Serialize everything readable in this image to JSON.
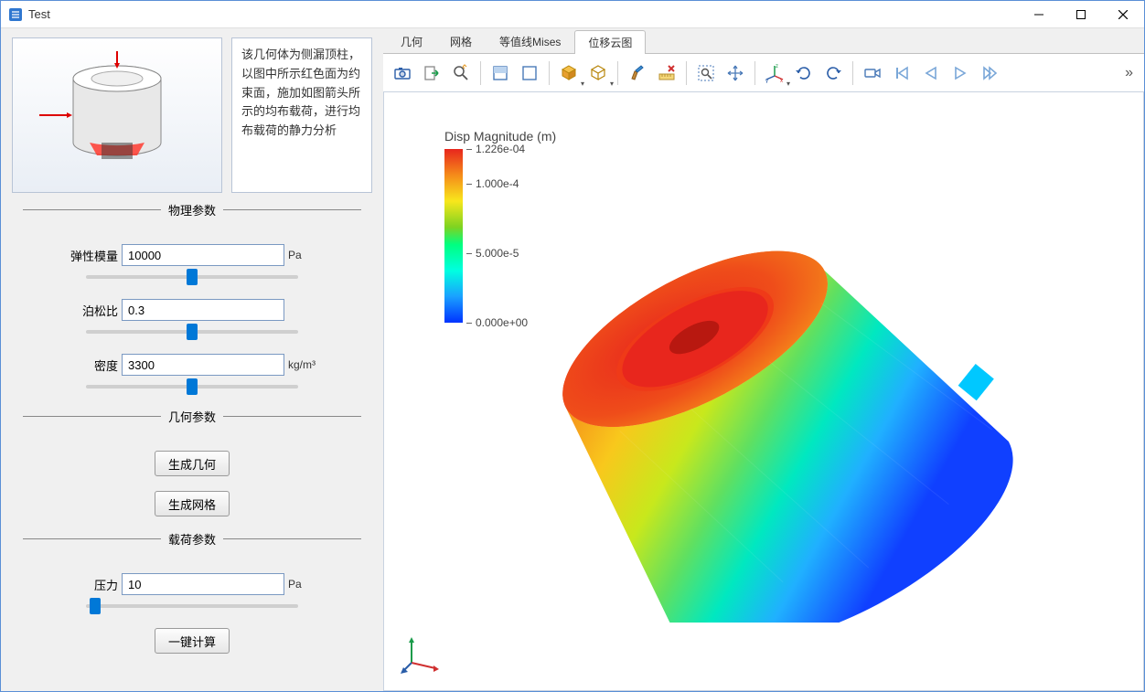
{
  "window": {
    "title": "Test"
  },
  "description": "该几何体为侧漏顶柱，以图中所示红色面为约束面，施加如图箭头所示的均布载荷，进行均布载荷的静力分析",
  "sections": {
    "physical": "物理参数",
    "geometry": "几何参数",
    "load": "载荷参数"
  },
  "params": {
    "elastic": {
      "label": "弹性模量",
      "value": "10000",
      "unit": "Pa",
      "slider": 50
    },
    "poisson": {
      "label": "泊松比",
      "value": "0.3",
      "unit": "",
      "slider": 50
    },
    "density": {
      "label": "密度",
      "value": "3300",
      "unit": "kg/m³",
      "slider": 50
    },
    "pressure": {
      "label": "压力",
      "value": "10",
      "unit": "Pa",
      "slider": 2
    }
  },
  "buttons": {
    "gen_geom": "生成几何",
    "gen_mesh": "生成网格",
    "compute": "一键计算"
  },
  "tabs": [
    {
      "id": "geom",
      "label": "几何",
      "active": false
    },
    {
      "id": "mesh",
      "label": "网格",
      "active": false
    },
    {
      "id": "mises",
      "label": "等值线Mises",
      "active": false
    },
    {
      "id": "disp",
      "label": "位移云图",
      "active": true
    }
  ],
  "legend": {
    "title": "Disp Magnitude (m)",
    "gradient_colors": [
      "#e8261d",
      "#f58b1a",
      "#f8e71c",
      "#7ed321",
      "#00ff80",
      "#00ffe0",
      "#1aa0ff",
      "#0033ff"
    ],
    "ticks": [
      {
        "label": "1.226e-04",
        "pos_pct": 0
      },
      {
        "label": "1.000e-4",
        "pos_pct": 20
      },
      {
        "label": "5.000e-5",
        "pos_pct": 60
      },
      {
        "label": "0.000e+00",
        "pos_pct": 100
      }
    ]
  },
  "toolbar_icons": [
    "camera",
    "export-arrow",
    "magnifier",
    "select-rect-a",
    "select-rect-b",
    "cube-alt",
    "cube-dd",
    "brush",
    "ruler-x",
    "zoom-fit",
    "move-4way",
    "axes-xyz",
    "rotate-cw",
    "rotate-ccw",
    "camera-video",
    "step-first",
    "step-prev",
    "play",
    "step-fwd"
  ],
  "colors": {
    "window_bg": "#ffffff",
    "panel_bg": "#f0f0f0",
    "border": "#b8c4d6",
    "accent": "#0078d7",
    "text": "#333333"
  }
}
